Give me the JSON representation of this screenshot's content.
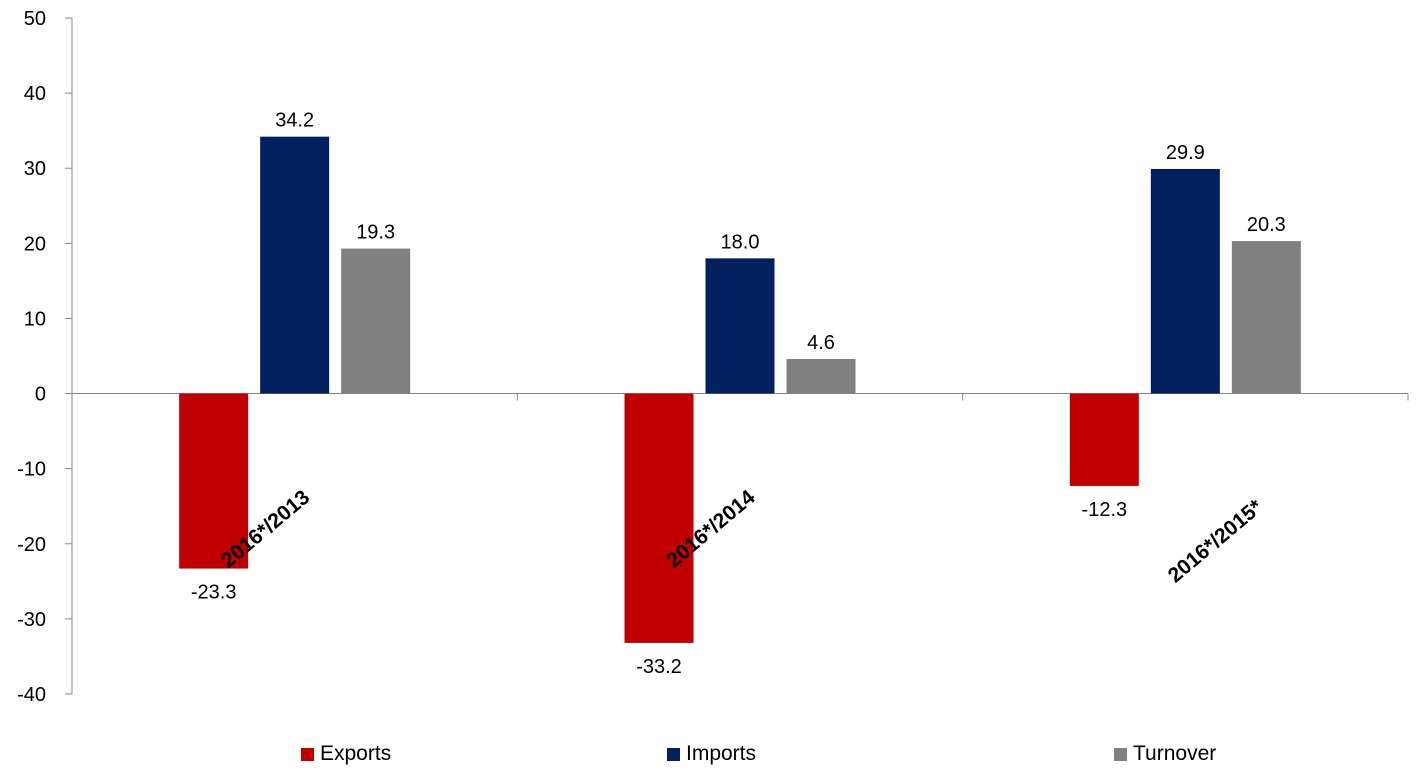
{
  "chart_data": {
    "type": "bar",
    "categories": [
      "2016*/2013",
      "2016*/2014",
      "2016*/2015*"
    ],
    "series": [
      {
        "name": "Exports",
        "values": [
          -23.3,
          -33.2,
          -12.3
        ],
        "color": "#c00000",
        "labels": [
          "-23.3",
          "-33.2",
          "-12.3"
        ]
      },
      {
        "name": "Imports",
        "values": [
          34.2,
          18.0,
          29.9
        ],
        "color": "#002060",
        "labels": [
          "34.2",
          "18.0",
          "29.9"
        ]
      },
      {
        "name": "Turnover",
        "values": [
          19.3,
          4.6,
          20.3
        ],
        "color": "#808080",
        "labels": [
          "19.3",
          "4.6",
          "20.3"
        ]
      }
    ],
    "ylim": [
      -40,
      50
    ],
    "yticks": [
      "50",
      "40",
      "30",
      "20",
      "10",
      "0",
      "-10",
      "-20",
      "-30",
      "-40"
    ],
    "legend_position": "bottom",
    "grid": false
  }
}
